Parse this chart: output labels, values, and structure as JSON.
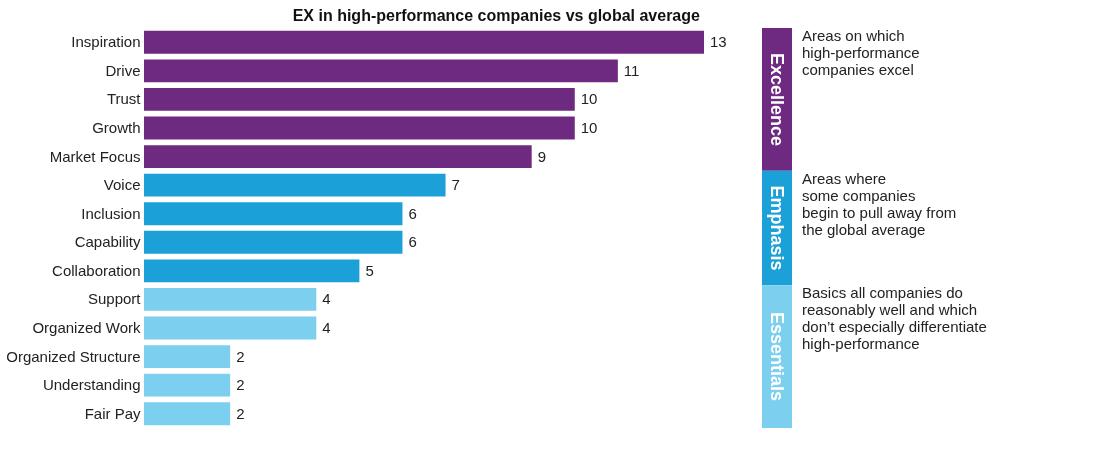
{
  "chart_data": {
    "type": "bar",
    "orientation": "horizontal",
    "title": "EX in high-performance companies vs global average",
    "categories": [
      "Inspiration",
      "Drive",
      "Trust",
      "Growth",
      "Market Focus",
      "Voice",
      "Inclusion",
      "Capability",
      "Collaboration",
      "Support",
      "Organized Work",
      "Organized Structure",
      "Understanding",
      "Fair Pay"
    ],
    "values": [
      13,
      11,
      10,
      10,
      9,
      7,
      6,
      6,
      5,
      4,
      4,
      2,
      2,
      2
    ],
    "colors": [
      "#6e2a80",
      "#6e2a80",
      "#6e2a80",
      "#6e2a80",
      "#6e2a80",
      "#1ba0d7",
      "#1ba0d7",
      "#1ba0d7",
      "#1ba0d7",
      "#7ccfee",
      "#7ccfee",
      "#7ccfee",
      "#7ccfee",
      "#7ccfee"
    ],
    "data_labels": true,
    "annotations": [
      "Excellence",
      "Areas on which\nhigh-performance\ncompanies excel",
      "Emphasis",
      "Areas where\nsome companies\nbegin to pull away from\nthe global average",
      "Essentials",
      "Basics all companies do\nreasonably well and which\ndon’t especially differentiate\nhigh-performance"
    ]
  }
}
